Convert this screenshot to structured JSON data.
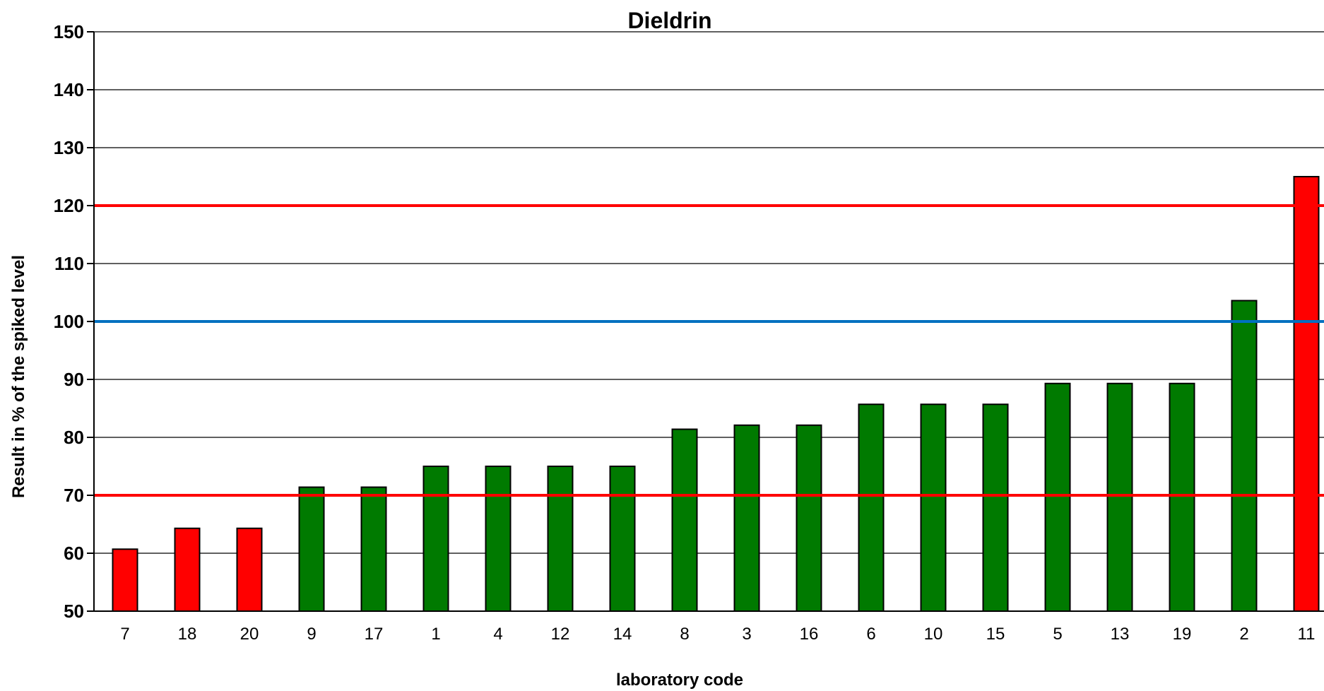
{
  "chart_data": {
    "type": "bar",
    "title": "Dieldrin",
    "xlabel": "laboratory code",
    "ylabel": "Result in % of the spiked level",
    "ylim": [
      50,
      150
    ],
    "yticks": [
      50,
      60,
      70,
      80,
      90,
      100,
      110,
      120,
      130,
      140,
      150
    ],
    "grid": true,
    "categories": [
      "7",
      "18",
      "20",
      "9",
      "17",
      "1",
      "4",
      "12",
      "14",
      "8",
      "3",
      "16",
      "6",
      "10",
      "15",
      "5",
      "13",
      "19",
      "2",
      "11"
    ],
    "values": [
      60.7,
      64.3,
      64.3,
      71.4,
      71.4,
      75.0,
      75.0,
      75.0,
      75.0,
      81.4,
      82.1,
      82.1,
      85.7,
      85.7,
      85.7,
      89.3,
      89.3,
      89.3,
      103.6,
      125.0
    ],
    "bar_colors": [
      "#ff0000",
      "#ff0000",
      "#ff0000",
      "#007a00",
      "#007a00",
      "#007a00",
      "#007a00",
      "#007a00",
      "#007a00",
      "#007a00",
      "#007a00",
      "#007a00",
      "#007a00",
      "#007a00",
      "#007a00",
      "#007a00",
      "#007a00",
      "#007a00",
      "#007a00",
      "#ff0000"
    ],
    "reference_lines": [
      {
        "value": 120,
        "color": "#ff0000"
      },
      {
        "value": 100,
        "color": "#0070c0"
      },
      {
        "value": 70,
        "color": "#ff0000"
      }
    ]
  }
}
